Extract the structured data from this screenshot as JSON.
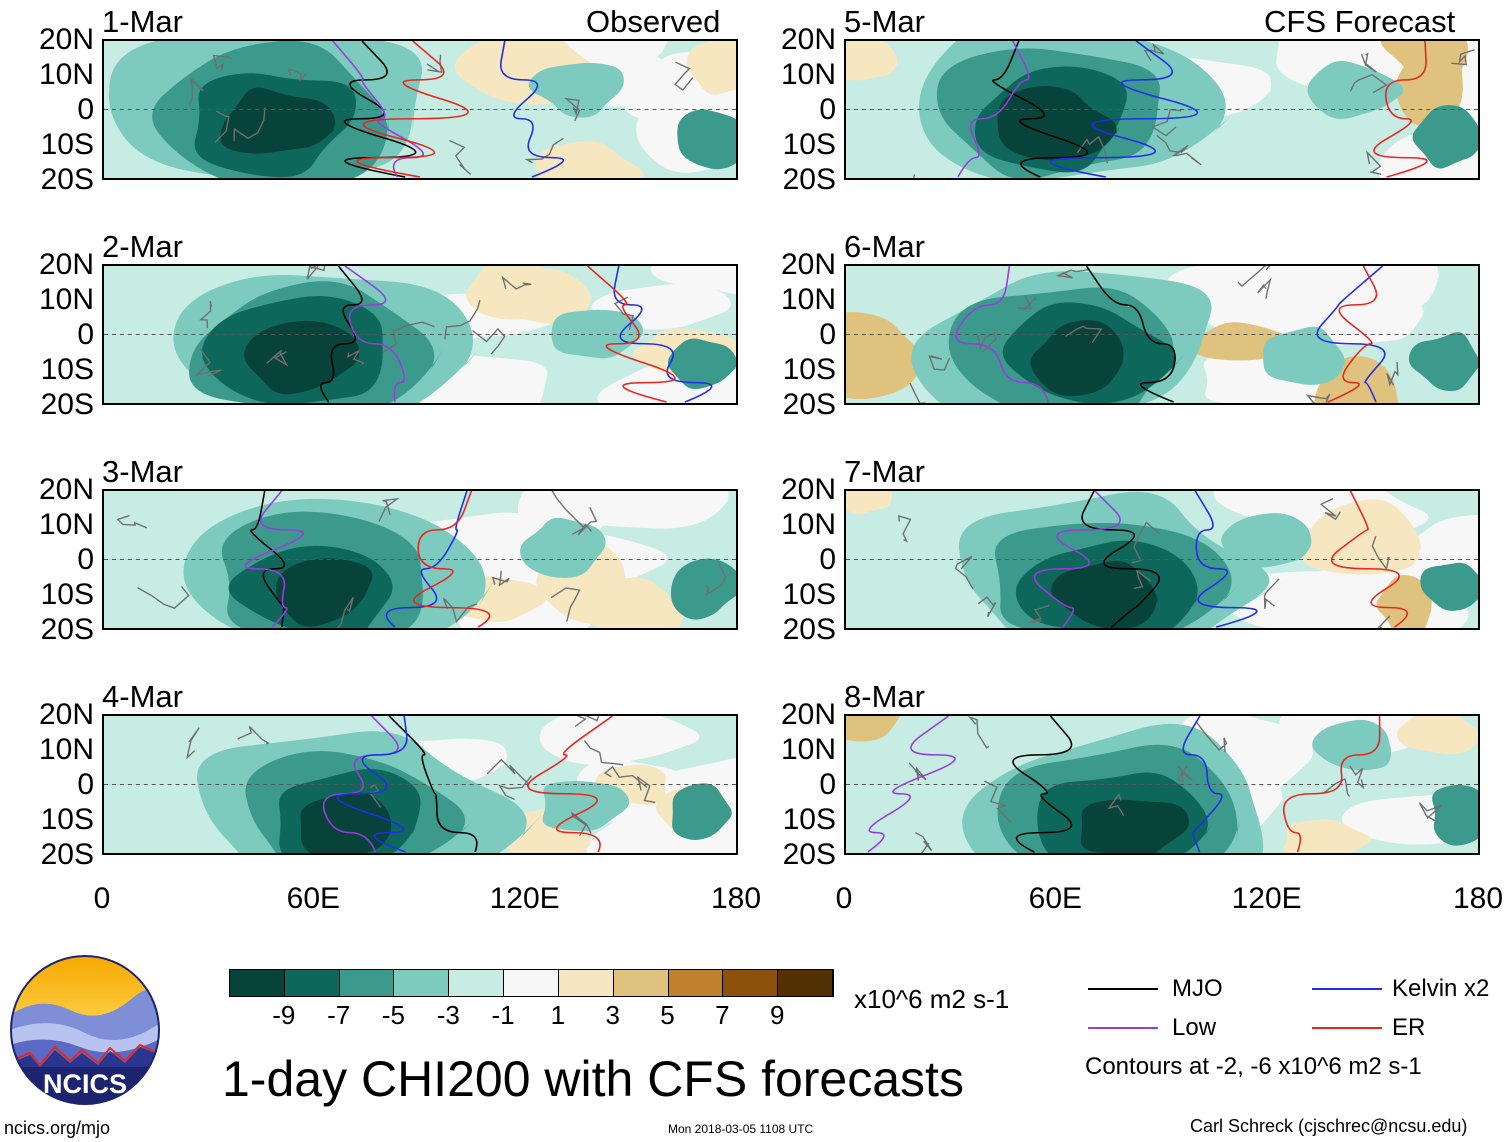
{
  "column_headers": {
    "left": "Observed",
    "right": "CFS Forecast"
  },
  "panels": [
    {
      "date": "1-Mar",
      "kind": "Observed"
    },
    {
      "date": "2-Mar",
      "kind": "Observed"
    },
    {
      "date": "3-Mar",
      "kind": "Observed"
    },
    {
      "date": "4-Mar",
      "kind": "Observed"
    },
    {
      "date": "5-Mar",
      "kind": "CFS Forecast"
    },
    {
      "date": "6-Mar",
      "kind": "CFS Forecast"
    },
    {
      "date": "7-Mar",
      "kind": "CFS Forecast"
    },
    {
      "date": "8-Mar",
      "kind": "CFS Forecast"
    }
  ],
  "map_extent": {
    "lon_min": 0,
    "lon_max": 180,
    "lat_min": -20,
    "lat_max": 20
  },
  "lat_labels": [
    "20N",
    "10N",
    "0",
    "10S",
    "20S"
  ],
  "lon_labels": [
    "0",
    "60E",
    "120E",
    "180"
  ],
  "colorbar": {
    "colors": [
      "#07433a",
      "#0e675b",
      "#3b9a8c",
      "#7ccbbe",
      "#c7ece4",
      "#f7f7f7",
      "#f6e7c1",
      "#dfc27d",
      "#bf812d",
      "#8c510a",
      "#543005"
    ],
    "ticks": [
      "-9",
      "-7",
      "-5",
      "-3",
      "-1",
      "1",
      "3",
      "5",
      "7",
      "9"
    ],
    "units": "x10^6 m2 s-1"
  },
  "legend": {
    "items": [
      {
        "label": "MJO",
        "color": "#000000"
      },
      {
        "label": "Kelvin x2",
        "color": "#1f2ee8"
      },
      {
        "label": "Low",
        "color": "#9a3be0"
      },
      {
        "label": "ER",
        "color": "#e8261f"
      }
    ],
    "contours_note": "Contours at -2, -6 x10^6 m2 s-1"
  },
  "logo": {
    "text": "NCICS"
  },
  "title": "1-day CHI200 with CFS forecasts",
  "footer": {
    "left": "ncics.org/mjo",
    "center": "Mon 2018-03-05 1108 UTC",
    "right": "Carl Schreck (cjschrec@ncsu.edu)"
  }
}
